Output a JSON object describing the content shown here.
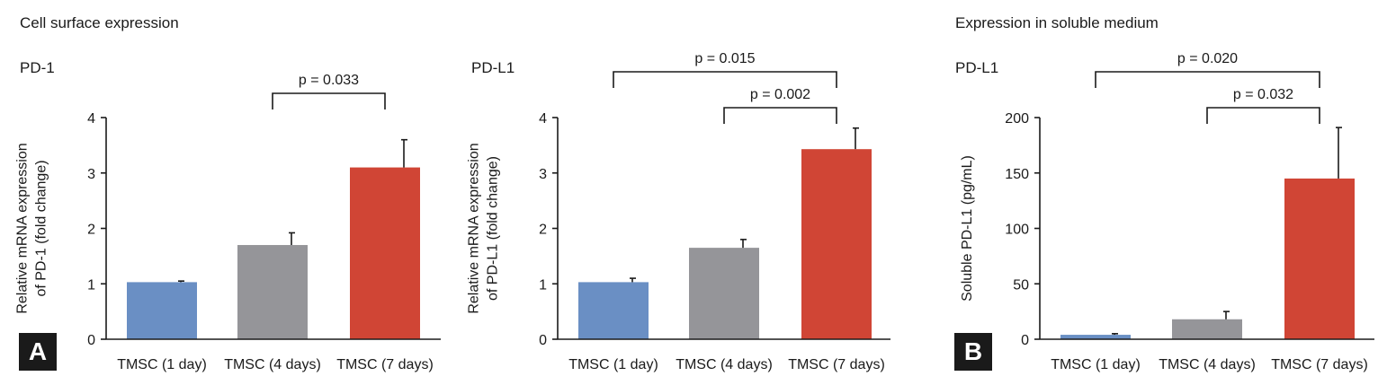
{
  "figure": {
    "section_a_title": "Cell surface expression",
    "section_b_title": "Expression in soluble medium",
    "badge_a": "A",
    "badge_b": "B"
  },
  "colors": {
    "blue": "#6a8fc4",
    "gray": "#959599",
    "red": "#d04535",
    "axis": "#1a1a1a"
  },
  "chart_data": [
    {
      "type": "bar",
      "panel_title": "PD-1",
      "ylabel_lines": [
        "Relative mRNA expression",
        "of PD-1 (fold change)"
      ],
      "categories": [
        "TMSC (1 day)",
        "TMSC (4 days)",
        "TMSC (7 days)"
      ],
      "values": [
        1.03,
        1.7,
        3.1
      ],
      "errors": [
        0.02,
        0.22,
        0.5
      ],
      "ylim": [
        0,
        4
      ],
      "yticks": [
        "0",
        "1",
        "2",
        "3",
        "4"
      ],
      "ytick_values": [
        0,
        1,
        2,
        3,
        4
      ],
      "significance": [
        {
          "from": 1,
          "to": 2,
          "label": "p = 0.033"
        }
      ]
    },
    {
      "type": "bar",
      "panel_title": "PD-L1",
      "ylabel_lines": [
        "Relative mRNA expression",
        "of PD-L1 (fold change)"
      ],
      "categories": [
        "TMSC (1 day)",
        "TMSC (4 days)",
        "TMSC (7 days)"
      ],
      "values": [
        1.03,
        1.65,
        3.43
      ],
      "errors": [
        0.07,
        0.15,
        0.38
      ],
      "ylim": [
        0,
        4
      ],
      "yticks": [
        "0",
        "1",
        "2",
        "3",
        "4"
      ],
      "ytick_values": [
        0,
        1,
        2,
        3,
        4
      ],
      "significance": [
        {
          "from": 0,
          "to": 2,
          "label": "p = 0.015"
        },
        {
          "from": 1,
          "to": 2,
          "label": "p = 0.002"
        }
      ]
    },
    {
      "type": "bar",
      "panel_title": "PD-L1",
      "ylabel_lines": [
        "Soluble PD-L1 (pg/mL)"
      ],
      "categories": [
        "TMSC (1 day)",
        "TMSC (4 days)",
        "TMSC (7 days)"
      ],
      "values": [
        4,
        18,
        145
      ],
      "errors": [
        1,
        7,
        46
      ],
      "ylim": [
        0,
        200
      ],
      "yticks": [
        "0",
        "50",
        "100",
        "150",
        "200"
      ],
      "ytick_values": [
        0,
        50,
        100,
        150,
        200
      ],
      "significance": [
        {
          "from": 0,
          "to": 2,
          "label": "p = 0.020"
        },
        {
          "from": 1,
          "to": 2,
          "label": "p = 0.032"
        }
      ]
    }
  ]
}
